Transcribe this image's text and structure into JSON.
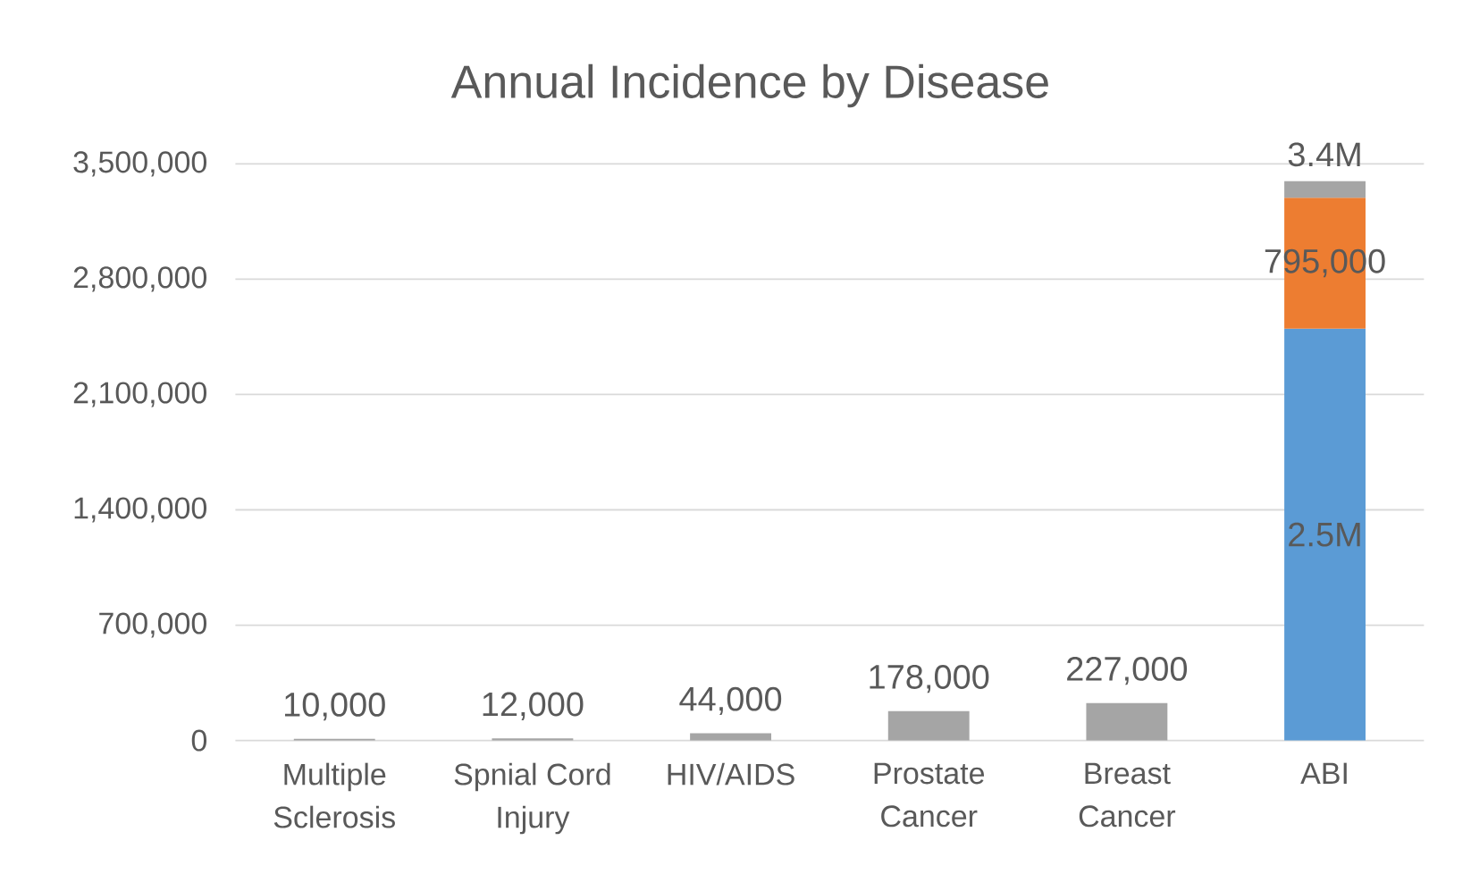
{
  "chart_data": {
    "type": "bar",
    "title": "Annual Incidence by Disease",
    "categories": [
      "Multiple Sclerosis",
      "Spnial Cord Injury",
      "HIV/AIDS",
      "Prostate Cancer",
      "Breast Cancer",
      "ABI"
    ],
    "stacked": true,
    "series": [
      {
        "color": "#5b9bd5",
        "values": [
          null,
          null,
          null,
          null,
          null,
          2500000
        ],
        "value_labels": [
          null,
          null,
          null,
          null,
          null,
          "2.5M"
        ]
      },
      {
        "color": "#ed7d31",
        "values": [
          null,
          null,
          null,
          null,
          null,
          795000
        ],
        "value_labels": [
          null,
          null,
          null,
          null,
          null,
          "795,000"
        ]
      },
      {
        "color": "#a5a5a5",
        "values": [
          10000,
          12000,
          44000,
          178000,
          227000,
          100000
        ],
        "value_labels": [
          "10,000",
          "12,000",
          "44,000",
          "178,000",
          "227,000",
          null
        ]
      }
    ],
    "totals": [
      null,
      null,
      null,
      null,
      null,
      "3.4M"
    ],
    "ylim": [
      0,
      3500000
    ],
    "yticks": [
      0,
      {
        "value": 700000,
        "label": "700,000"
      },
      {
        "value": 1400000,
        "label": "1,400,000"
      },
      {
        "value": 2100000,
        "label": "2,100,000"
      },
      {
        "value": 2800000,
        "label": "2,800,000"
      },
      {
        "value": 3500000,
        "label": "3,500,000"
      }
    ],
    "grid": "y"
  }
}
